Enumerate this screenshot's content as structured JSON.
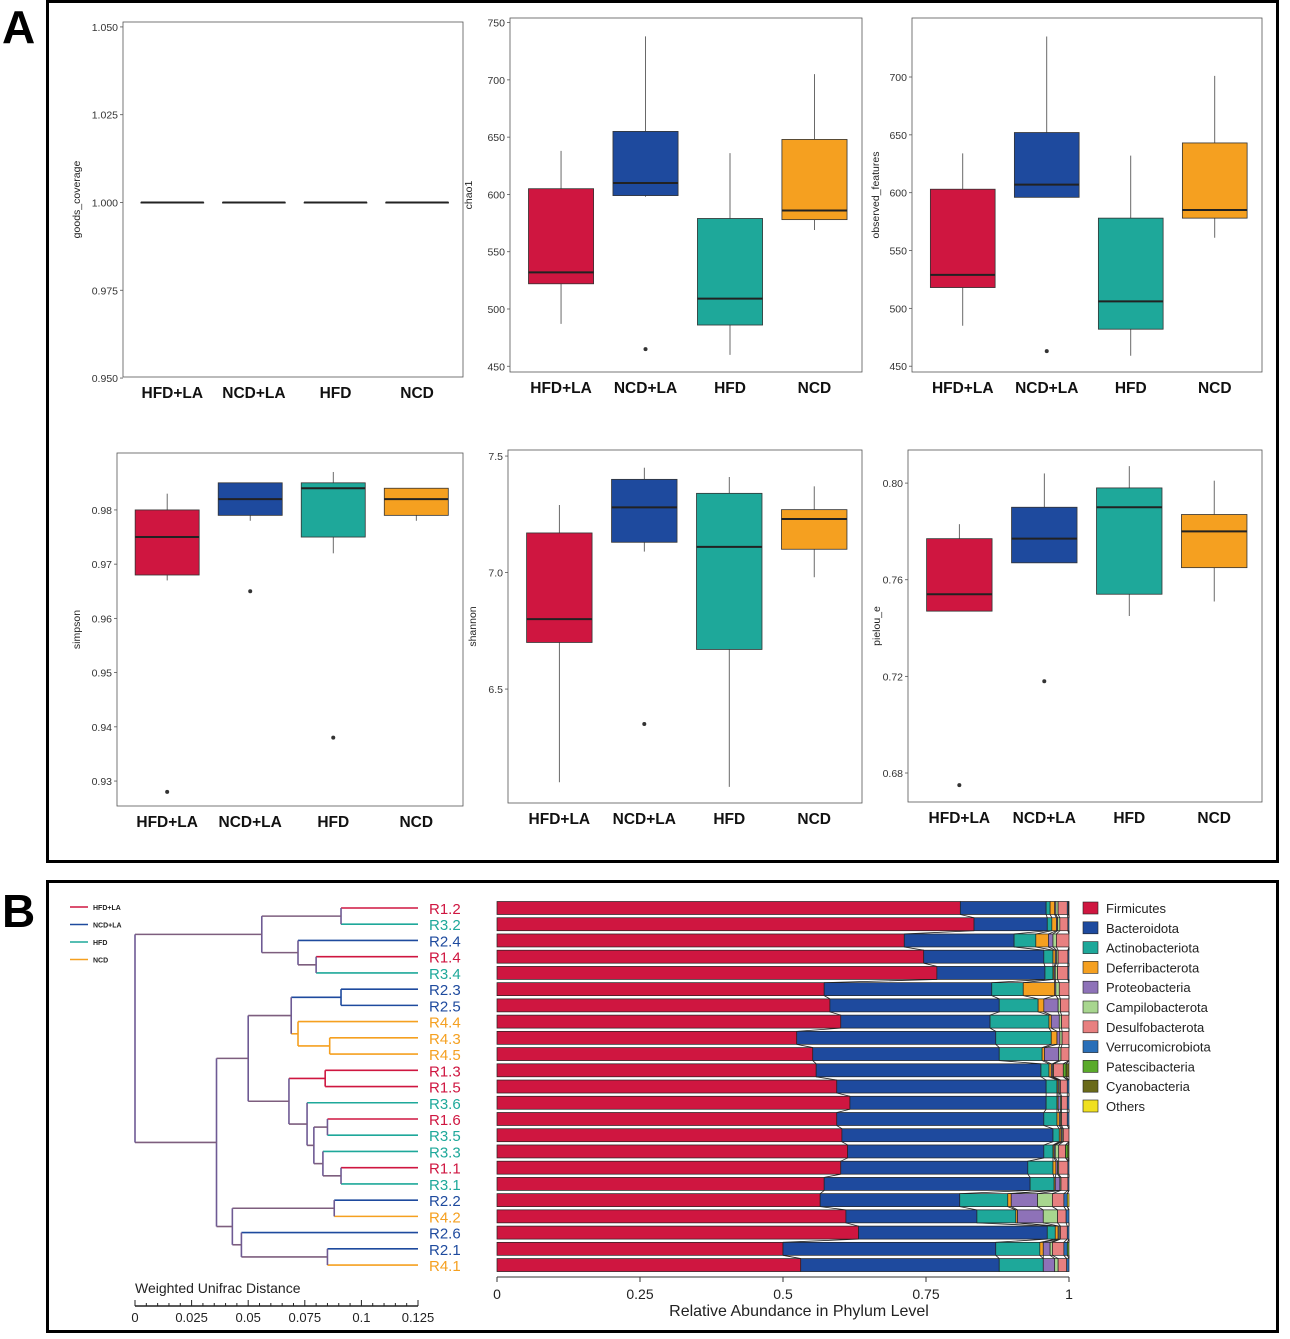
{
  "panels": {
    "a_label": "A",
    "b_label": "B"
  },
  "colors": {
    "HFD+LA": "#CF1640",
    "NCD+LA": "#1E4A9E",
    "HFD": "#1EA89A",
    "NCD": "#F5A020",
    "mixed_branch": "#7D5E7E"
  },
  "chart_data": [
    {
      "type": "boxplot",
      "ylabel": "goods_coverage",
      "ylim": [
        0.9503,
        1.0514
      ],
      "yticks": [
        "0.950",
        "0.975",
        "1.000",
        "1.025",
        "1.050"
      ],
      "categories": [
        "HFD+LA",
        "NCD+LA",
        "HFD",
        "NCD"
      ],
      "boxes": [
        {
          "low": 1.0,
          "q1": 1.0,
          "median": 1.0,
          "q3": 1.0,
          "high": 1.0,
          "outliers": []
        },
        {
          "low": 1.0,
          "q1": 1.0,
          "median": 1.0,
          "q3": 1.0,
          "high": 1.0,
          "outliers": []
        },
        {
          "low": 1.0,
          "q1": 1.0,
          "median": 1.0,
          "q3": 1.0,
          "high": 1.0,
          "outliers": []
        },
        {
          "low": 1.0,
          "q1": 1.0,
          "median": 1.0,
          "q3": 1.0,
          "high": 1.0,
          "outliers": []
        }
      ]
    },
    {
      "type": "boxplot",
      "ylabel": "chao1",
      "ylim": [
        445,
        754
      ],
      "yticks": [
        "450",
        "500",
        "550",
        "600",
        "650",
        "700",
        "750"
      ],
      "categories": [
        "HFD+LA",
        "NCD+LA",
        "HFD",
        "NCD"
      ],
      "boxes": [
        {
          "low": 487,
          "q1": 522,
          "median": 532,
          "q3": 605,
          "high": 638,
          "outliers": []
        },
        {
          "low": 598,
          "q1": 599,
          "median": 610,
          "q3": 655,
          "high": 738,
          "outliers": [
            465
          ]
        },
        {
          "low": 460,
          "q1": 486,
          "median": 509,
          "q3": 579,
          "high": 636,
          "outliers": []
        },
        {
          "low": 569,
          "q1": 578,
          "median": 586,
          "q3": 648,
          "high": 705,
          "outliers": []
        }
      ]
    },
    {
      "type": "boxplot",
      "ylabel": "observed_features",
      "ylim": [
        445,
        751
      ],
      "yticks": [
        "450",
        "500",
        "550",
        "600",
        "650",
        "700"
      ],
      "categories": [
        "HFD+LA",
        "NCD+LA",
        "HFD",
        "NCD"
      ],
      "boxes": [
        {
          "low": 485,
          "q1": 518,
          "median": 529,
          "q3": 603,
          "high": 634,
          "outliers": []
        },
        {
          "low": 596,
          "q1": 596,
          "median": 607,
          "q3": 652,
          "high": 735,
          "outliers": [
            463
          ]
        },
        {
          "low": 459,
          "q1": 482,
          "median": 506,
          "q3": 578,
          "high": 632,
          "outliers": []
        },
        {
          "low": 561,
          "q1": 578,
          "median": 585,
          "q3": 643,
          "high": 701,
          "outliers": []
        }
      ]
    },
    {
      "type": "boxplot",
      "ylabel": "simpson",
      "ylim": [
        0.9254,
        0.9905
      ],
      "yticks": [
        "0.93",
        "0.94",
        "0.95",
        "0.96",
        "0.97",
        "0.98"
      ],
      "categories": [
        "HFD+LA",
        "NCD+LA",
        "HFD",
        "NCD"
      ],
      "boxes": [
        {
          "low": 0.967,
          "q1": 0.968,
          "median": 0.975,
          "q3": 0.98,
          "high": 0.983,
          "outliers": [
            0.928
          ]
        },
        {
          "low": 0.978,
          "q1": 0.979,
          "median": 0.982,
          "q3": 0.985,
          "high": 0.985,
          "outliers": [
            0.965
          ]
        },
        {
          "low": 0.972,
          "q1": 0.975,
          "median": 0.984,
          "q3": 0.985,
          "high": 0.987,
          "outliers": [
            0.938
          ]
        },
        {
          "low": 0.978,
          "q1": 0.979,
          "median": 0.982,
          "q3": 0.984,
          "high": 0.984,
          "outliers": []
        }
      ]
    },
    {
      "type": "boxplot",
      "ylabel": "shannon",
      "ylim": [
        6.011,
        7.526
      ],
      "yticks": [
        "6.5",
        "7.0",
        "7.5"
      ],
      "categories": [
        "HFD+LA",
        "NCD+LA",
        "HFD",
        "NCD"
      ],
      "boxes": [
        {
          "low": 6.1,
          "q1": 6.7,
          "median": 6.8,
          "q3": 7.17,
          "high": 7.29,
          "outliers": []
        },
        {
          "low": 7.09,
          "q1": 7.13,
          "median": 7.28,
          "q3": 7.4,
          "high": 7.45,
          "outliers": [
            6.35
          ]
        },
        {
          "low": 6.08,
          "q1": 6.67,
          "median": 7.11,
          "q3": 7.34,
          "high": 7.41,
          "outliers": []
        },
        {
          "low": 6.98,
          "q1": 7.1,
          "median": 7.23,
          "q3": 7.27,
          "high": 7.37,
          "outliers": []
        }
      ]
    },
    {
      "type": "boxplot",
      "ylabel": "pielou_e",
      "ylim": [
        0.668,
        0.8137
      ],
      "yticks": [
        "0.68",
        "0.72",
        "0.76",
        "0.80"
      ],
      "categories": [
        "HFD+LA",
        "NCD+LA",
        "HFD",
        "NCD"
      ],
      "boxes": [
        {
          "low": 0.747,
          "q1": 0.747,
          "median": 0.754,
          "q3": 0.777,
          "high": 0.783,
          "outliers": [
            0.675
          ]
        },
        {
          "low": 0.767,
          "q1": 0.767,
          "median": 0.777,
          "q3": 0.79,
          "high": 0.804,
          "outliers": [
            0.718
          ]
        },
        {
          "low": 0.745,
          "q1": 0.754,
          "median": 0.79,
          "q3": 0.798,
          "high": 0.807,
          "outliers": []
        },
        {
          "low": 0.751,
          "q1": 0.765,
          "median": 0.78,
          "q3": 0.787,
          "high": 0.801,
          "outliers": []
        }
      ]
    },
    {
      "type": "stacked-bar-horizontal",
      "xlabel": "Relative Abundance in Phylum Level",
      "xlim": [
        0,
        1
      ],
      "xticks": [
        "0",
        "0.25",
        "0.5",
        "0.75",
        "1"
      ],
      "legend_position": "right",
      "phyla": [
        {
          "name": "Firmicutes",
          "color": "#CF1640"
        },
        {
          "name": "Bacteroidota",
          "color": "#1E4A9E"
        },
        {
          "name": "Actinobacteriota",
          "color": "#1EA89A"
        },
        {
          "name": "Deferribacterota",
          "color": "#F5A020"
        },
        {
          "name": "Proteobacteria",
          "color": "#8E72B8"
        },
        {
          "name": "Campilobacterota",
          "color": "#A8D68F"
        },
        {
          "name": "Desulfobacterota",
          "color": "#E88080"
        },
        {
          "name": "Verrucomicrobiota",
          "color": "#2A6FB8"
        },
        {
          "name": "Patescibacteria",
          "color": "#5AAA2A"
        },
        {
          "name": "Cyanobacteria",
          "color": "#6A6A1A"
        },
        {
          "name": "Others",
          "color": "#F0E020"
        }
      ],
      "samples": [
        {
          "name": "R1.2",
          "values": [
            0.81,
            0.15,
            0.007,
            0.008,
            0.002,
            0.004,
            0.016,
            0.002,
            0.001,
            0,
            0
          ]
        },
        {
          "name": "R3.2",
          "values": [
            0.834,
            0.128,
            0.008,
            0.008,
            0.002,
            0.004,
            0.014,
            0.002,
            0,
            0,
            0
          ]
        },
        {
          "name": "R2.4",
          "values": [
            0.712,
            0.192,
            0.038,
            0.022,
            0.008,
            0.006,
            0.022,
            0,
            0,
            0,
            0
          ]
        },
        {
          "name": "R1.4",
          "values": [
            0.746,
            0.21,
            0.016,
            0.004,
            0.002,
            0.003,
            0.017,
            0.002,
            0,
            0,
            0
          ]
        },
        {
          "name": "R3.4",
          "values": [
            0.769,
            0.189,
            0.014,
            0.002,
            0.002,
            0.004,
            0.018,
            0.002,
            0,
            0,
            0
          ]
        },
        {
          "name": "R2.3",
          "values": [
            0.572,
            0.293,
            0.055,
            0.055,
            0.002,
            0.006,
            0.017,
            0,
            0,
            0,
            0
          ]
        },
        {
          "name": "R2.5",
          "values": [
            0.582,
            0.296,
            0.068,
            0.01,
            0.025,
            0.004,
            0.015,
            0,
            0,
            0,
            0
          ]
        },
        {
          "name": "R4.4",
          "values": [
            0.601,
            0.261,
            0.103,
            0.004,
            0.014,
            0.004,
            0.013,
            0,
            0,
            0,
            0
          ]
        },
        {
          "name": "R4.3",
          "values": [
            0.524,
            0.348,
            0.097,
            0.01,
            0.005,
            0.004,
            0.012,
            0,
            0,
            0,
            0
          ]
        },
        {
          "name": "R4.5",
          "values": [
            0.552,
            0.326,
            0.075,
            0.004,
            0.025,
            0.004,
            0.014,
            0,
            0,
            0,
            0
          ]
        },
        {
          "name": "R1.3",
          "values": [
            0.558,
            0.393,
            0.014,
            0.004,
            0.002,
            0.002,
            0.017,
            0,
            0.005,
            0.005,
            0
          ]
        },
        {
          "name": "R1.5",
          "values": [
            0.594,
            0.366,
            0.019,
            0.002,
            0.002,
            0.002,
            0.012,
            0.003,
            0,
            0,
            0
          ]
        },
        {
          "name": "R3.6",
          "values": [
            0.617,
            0.343,
            0.019,
            0.002,
            0.004,
            0.002,
            0.01,
            0.003,
            0,
            0,
            0
          ]
        },
        {
          "name": "R1.6",
          "values": [
            0.594,
            0.362,
            0.023,
            0.004,
            0.002,
            0.002,
            0.01,
            0.003,
            0,
            0,
            0
          ]
        },
        {
          "name": "R3.5",
          "values": [
            0.603,
            0.369,
            0.011,
            0.003,
            0.002,
            0.002,
            0.01,
            0,
            0,
            0,
            0
          ]
        },
        {
          "name": "R3.3",
          "values": [
            0.613,
            0.343,
            0.016,
            0.002,
            0.002,
            0.006,
            0.012,
            0,
            0.004,
            0.002,
            0
          ]
        },
        {
          "name": "R1.1",
          "values": [
            0.601,
            0.327,
            0.044,
            0.005,
            0.003,
            0.002,
            0.016,
            0.002,
            0,
            0,
            0
          ]
        },
        {
          "name": "R3.1",
          "values": [
            0.572,
            0.36,
            0.042,
            0.002,
            0.008,
            0.002,
            0.012,
            0.002,
            0,
            0,
            0
          ]
        },
        {
          "name": "R2.2",
          "values": [
            0.565,
            0.244,
            0.084,
            0.006,
            0.046,
            0.026,
            0.02,
            0.006,
            0,
            0,
            0.003
          ]
        },
        {
          "name": "R4.2",
          "values": [
            0.61,
            0.229,
            0.068,
            0.003,
            0.045,
            0.025,
            0.015,
            0.005,
            0,
            0,
            0
          ]
        },
        {
          "name": "R2.6",
          "values": [
            0.632,
            0.33,
            0.014,
            0.005,
            0.002,
            0.002,
            0.012,
            0.003,
            0,
            0,
            0
          ]
        },
        {
          "name": "R2.1",
          "values": [
            0.5,
            0.372,
            0.077,
            0.006,
            0.012,
            0.004,
            0.02,
            0.006,
            0.003,
            0,
            0
          ]
        },
        {
          "name": "R4.1",
          "values": [
            0.531,
            0.347,
            0.077,
            0,
            0.02,
            0.006,
            0.015,
            0.004,
            0,
            0,
            0
          ]
        }
      ]
    },
    {
      "type": "dendrogram",
      "title": "Weighted Unifrac Distance",
      "xticks": [
        "0",
        "0.025",
        "0.05",
        "0.075",
        "0.1",
        "0.125"
      ],
      "xlim": [
        0,
        0.125
      ],
      "legend": [
        "HFD+LA",
        "NCD+LA",
        "HFD",
        "NCD"
      ],
      "sample_groups": {
        "R1": "HFD+LA",
        "R2": "NCD+LA",
        "R3": "HFD",
        "R4": "NCD"
      },
      "tree": {
        "h": 0.125,
        "c": [
          {
            "h": 0.069,
            "c": [
              {
                "h": 0.034,
                "c": [
                  "R1.2",
                  "R3.2"
                ]
              },
              {
                "h": 0.053,
                "c": [
                  "R2.4",
                  {
                    "h": 0.045,
                    "c": [
                      "R1.4",
                      "R3.4"
                    ]
                  }
                ]
              }
            ]
          },
          {
            "h": 0.089,
            "c": [
              {
                "h": 0.075,
                "c": [
                  {
                    "h": 0.056,
                    "c": [
                      {
                        "h": 0.034,
                        "c": [
                          "R2.3",
                          "R2.5"
                        ]
                      },
                      {
                        "h": 0.053,
                        "c": [
                          "R4.4",
                          {
                            "h": 0.039,
                            "c": [
                              "R4.3",
                              "R4.5"
                            ]
                          }
                        ]
                      }
                    ]
                  },
                  {
                    "h": 0.057,
                    "c": [
                      {
                        "h": 0.041,
                        "c": [
                          "R1.3",
                          "R1.5"
                        ]
                      },
                      {
                        "h": 0.049,
                        "c": [
                          "R3.6",
                          {
                            "h": 0.046,
                            "c": [
                              {
                                "h": 0.04,
                                "c": [
                                  "R1.6",
                                  "R3.5"
                                ]
                              },
                              {
                                "h": 0.042,
                                "c": [
                                  "R3.3",
                                  {
                                    "h": 0.034,
                                    "c": [
                                      "R1.1",
                                      "R3.1"
                                    ]
                                  }
                                ]
                              }
                            ]
                          }
                        ]
                      }
                    ]
                  }
                ]
              },
              {
                "h": 0.082,
                "c": [
                  {
                    "h": 0.037,
                    "c": [
                      "R2.2",
                      "R4.2"
                    ]
                  },
                  {
                    "h": 0.078,
                    "c": [
                      "R2.6",
                      {
                        "h": 0.04,
                        "c": [
                          "R2.1",
                          "R4.1"
                        ]
                      }
                    ]
                  }
                ]
              }
            ]
          }
        ]
      }
    }
  ]
}
